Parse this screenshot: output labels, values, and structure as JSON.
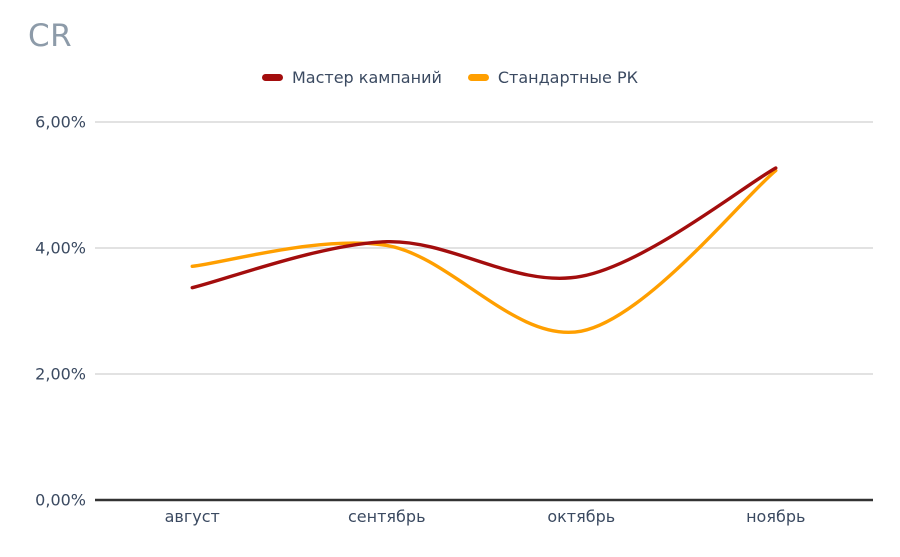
{
  "chart_data": {
    "type": "line",
    "title": "CR",
    "categories": [
      "август",
      "сентябрь",
      "октябрь",
      "ноябрь"
    ],
    "series": [
      {
        "name": "Мастер кампаний",
        "color": "#a30d0d",
        "values": [
          3.37,
          4.1,
          3.55,
          5.27
        ]
      },
      {
        "name": "Стандартные РК",
        "color": "#ff9f00",
        "values": [
          3.71,
          4.04,
          2.68,
          5.23
        ]
      }
    ],
    "yticks": [
      {
        "value": 0,
        "label": "0,00%"
      },
      {
        "value": 2,
        "label": "2,00%"
      },
      {
        "value": 4,
        "label": "4,00%"
      },
      {
        "value": 6,
        "label": "6,00%"
      }
    ],
    "ylim": [
      0,
      6
    ],
    "grid": "horizontal",
    "legend_position": "top",
    "smooth": true
  },
  "colors": {
    "title": "#8d9ba9",
    "label": "#3b4a61",
    "gridline": "#d9d9d9",
    "baseline": "#333333",
    "background": "#ffffff"
  }
}
